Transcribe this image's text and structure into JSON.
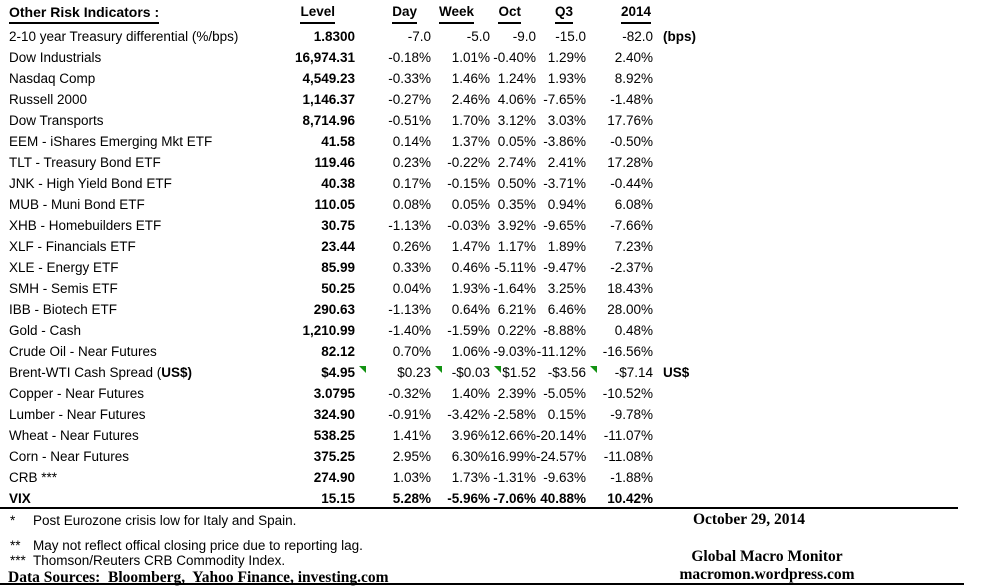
{
  "table": {
    "title": "Other Risk Indicators :",
    "columns": [
      "Level",
      "Day",
      "Week",
      "Oct",
      "Q3",
      "2014"
    ],
    "rows": [
      {
        "label": "2-10 year Treasury differential (%/bps)",
        "values": [
          "1.8300",
          "-7.0",
          "-5.0",
          "-9.0",
          "-15.0",
          "-82.0"
        ],
        "note": "(bps)"
      },
      {
        "label": "Dow Industrials",
        "values": [
          "16,974.31",
          "-0.18%",
          "1.01%",
          "-0.40%",
          "1.29%",
          "2.40%"
        ]
      },
      {
        "label": "Nasdaq Comp",
        "values": [
          "4,549.23",
          "-0.33%",
          "1.46%",
          "1.24%",
          "1.93%",
          "8.92%"
        ]
      },
      {
        "label": "Russell 2000",
        "values": [
          "1,146.37",
          "-0.27%",
          "2.46%",
          "4.06%",
          "-7.65%",
          "-1.48%"
        ]
      },
      {
        "label": "Dow Transports",
        "values": [
          "8,714.96",
          "-0.51%",
          "1.70%",
          "3.12%",
          "3.03%",
          "17.76%"
        ]
      },
      {
        "label": "EEM - iShares Emerging Mkt ETF",
        "values": [
          "41.58",
          "0.14%",
          "1.37%",
          "0.05%",
          "-3.86%",
          "-0.50%"
        ]
      },
      {
        "label": "TLT - Treasury Bond ETF",
        "values": [
          "119.46",
          "0.23%",
          "-0.22%",
          "2.74%",
          "2.41%",
          "17.28%"
        ]
      },
      {
        "label": "JNK - High Yield Bond ETF",
        "values": [
          "40.38",
          "0.17%",
          "-0.15%",
          "0.50%",
          "-3.71%",
          "-0.44%"
        ]
      },
      {
        "label": "MUB - Muni Bond ETF",
        "values": [
          "110.05",
          "0.08%",
          "0.05%",
          "0.35%",
          "0.94%",
          "6.08%"
        ]
      },
      {
        "label": "XHB - Homebuilders ETF",
        "values": [
          "30.75",
          "-1.13%",
          "-0.03%",
          "3.92%",
          "-9.65%",
          "-7.66%"
        ]
      },
      {
        "label": "XLF - Financials ETF",
        "values": [
          "23.44",
          "0.26%",
          "1.47%",
          "1.17%",
          "1.89%",
          "7.23%"
        ]
      },
      {
        "label": "XLE - Energy ETF",
        "values": [
          "85.99",
          "0.33%",
          "0.46%",
          "-5.11%",
          "-9.47%",
          "-2.37%"
        ]
      },
      {
        "label": "SMH - Semis ETF",
        "values": [
          "50.25",
          "0.04%",
          "1.93%",
          "-1.64%",
          "3.25%",
          "18.43%"
        ]
      },
      {
        "label": "IBB - Biotech ETF",
        "values": [
          "290.63",
          "-1.13%",
          "0.64%",
          "6.21%",
          "6.46%",
          "28.00%"
        ]
      },
      {
        "label": "Gold - Cash",
        "values": [
          "1,210.99",
          "-1.40%",
          "-1.59%",
          "0.22%",
          "-8.88%",
          "0.48%"
        ]
      },
      {
        "label": "Crude Oil - Near Futures",
        "values": [
          "82.12",
          "0.70%",
          "1.06%",
          "-9.03%",
          "-11.12%",
          "-16.56%"
        ]
      },
      {
        "label": "Brent-WTI Cash Spread (US$)",
        "label_parts": [
          {
            "text": "Brent-WTI Cash Spread (",
            "bold": false
          },
          {
            "text": "US$)",
            "bold": true
          }
        ],
        "values": [
          "$4.95",
          "$0.23",
          "-$0.03",
          "$1.52",
          "-$3.56",
          "-$7.14"
        ],
        "note": "US$",
        "flags": [
          1,
          2,
          3,
          5
        ]
      },
      {
        "label": "Copper - Near Futures",
        "values": [
          "3.0795",
          "-0.32%",
          "1.40%",
          "2.39%",
          "-5.05%",
          "-10.52%"
        ]
      },
      {
        "label": "Lumber - Near Futures",
        "values": [
          "324.90",
          "-0.91%",
          "-3.42%",
          "-2.58%",
          "0.15%",
          "-9.78%"
        ]
      },
      {
        "label": "Wheat - Near Futures",
        "values": [
          "538.25",
          "1.41%",
          "3.96%",
          "12.66%",
          "-20.14%",
          "-11.07%"
        ]
      },
      {
        "label": "Corn - Near Futures",
        "values": [
          "375.25",
          "2.95%",
          "6.30%",
          "16.99%",
          "-24.57%",
          "-11.08%"
        ]
      },
      {
        "label": "CRB ***",
        "values": [
          "274.90",
          "1.03%",
          "1.73%",
          "-1.31%",
          "-9.63%",
          "-1.88%"
        ]
      },
      {
        "label": "VIX",
        "bold": true,
        "values": [
          "15.15",
          "5.28%",
          "-5.96%",
          "-7.06%",
          "40.88%",
          "10.42%"
        ]
      }
    ]
  },
  "footnotes": [
    {
      "marker": "*",
      "text": "Post Eurozone crisis low for Italy and Spain."
    },
    {
      "marker": "**",
      "text": "May not reflect offical closing price due to reporting lag."
    },
    {
      "marker": "***",
      "text": "Thomson/Reuters CRB Commodity Index."
    }
  ],
  "data_sources": "Data Sources:  Bloomberg,  Yahoo Finance, investing.com",
  "footer_right": {
    "date": "October 29, 2014",
    "brand": "Global Macro Monitor",
    "site": "macromon.wordpress.com"
  },
  "colors": {
    "flag_green": "#129212",
    "text": "#000000",
    "background": "#ffffff",
    "rule": "#000000"
  }
}
